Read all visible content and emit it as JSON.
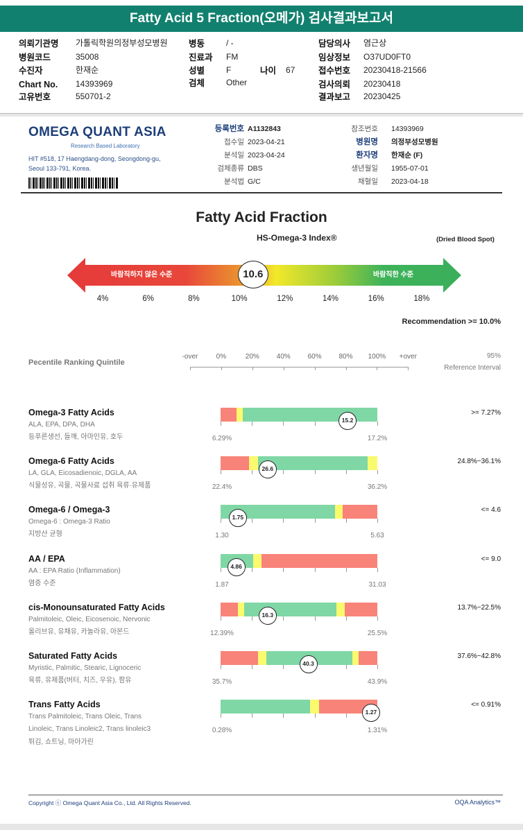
{
  "header": {
    "title": "Fatty Acid 5 Fraction(오메가) 검사결과보고서"
  },
  "info": {
    "col1": [
      {
        "k": "의뢰기관명",
        "v": "가톨릭학원의정부성모병원"
      },
      {
        "k": "병원코드",
        "v": "35008"
      },
      {
        "k": "수진자",
        "v": "한재순"
      },
      {
        "k": "Chart No.",
        "v": "14393969"
      },
      {
        "k": "고유번호",
        "v": "550701-2"
      }
    ],
    "col2": [
      {
        "k": "병동",
        "v": "/ -"
      },
      {
        "k": "진료과",
        "v": "FM"
      },
      {
        "k": "성별",
        "v": "F"
      },
      {
        "k": "검체",
        "v": "Other"
      }
    ],
    "age": {
      "k": "나이",
      "v": "67"
    },
    "col3": [
      {
        "k": "담당의사",
        "v": "염근상"
      },
      {
        "k": "임상정보",
        "v": "O37UD0FT0"
      },
      {
        "k": "접수번호",
        "v": "20230418-21566"
      },
      {
        "k": "검사의뢰",
        "v": "20230418"
      },
      {
        "k": "결과보고",
        "v": "20230425"
      }
    ]
  },
  "lab": {
    "logo": "OMEGA QUANT ASIA",
    "tagline": "Research Based Laboratory",
    "addr1": "HIT #518, 17 Haengdang-dong, Seongdong-gu,",
    "addr2": "Seoul 133-791, Korea.",
    "meta1": [
      {
        "k": "등록번호",
        "v": "A1132843",
        "b": true
      },
      {
        "k": "접수일",
        "v": "2023-04-21"
      },
      {
        "k": "분석일",
        "v": "2023-04-24"
      },
      {
        "k": "검체종류",
        "v": "DBS"
      },
      {
        "k": "분석법",
        "v": "G/C"
      }
    ],
    "meta2": [
      {
        "k": "참조번호",
        "v": "14393969"
      },
      {
        "k": "병원명",
        "v": "의정부성모병원",
        "b": true
      },
      {
        "k": "환자명",
        "v": "한재순 (F)",
        "b": true
      },
      {
        "k": "생년월일",
        "v": "1955-07-01"
      },
      {
        "k": "채혈일",
        "v": "2023-04-18"
      }
    ]
  },
  "index": {
    "title": "Fatty Acid Fraction",
    "subtitle": "HS-Omega-3 Index®",
    "specimen": "(Dried Blood Spot)",
    "value": 10.6,
    "value_label": "10.6",
    "bad_label": "바람직하지 않은 수준",
    "good_label": "바람직한 수준",
    "ticks": [
      "4%",
      "6%",
      "8%",
      "10%",
      "12%",
      "14%",
      "16%",
      "18%"
    ],
    "recommendation": "Recommendation  >= 10.0%",
    "colors": [
      "#e53a3a",
      "#eb8a2e",
      "#f2e52a",
      "#3fb35a"
    ]
  },
  "ranking": {
    "label": "Pecentile Ranking Quintile",
    "axis": [
      "-over",
      "0%",
      "20%",
      "40%",
      "60%",
      "80%",
      "100%",
      "+over"
    ],
    "ref1": "95%",
    "ref2": "Reference Interval"
  },
  "colors": {
    "red": "#f88379",
    "yellow": "#fafa6e",
    "green": "#7fd7a5"
  },
  "rows": [
    {
      "title": "Omega-3 Fatty Acids",
      "sub": "ALA, EPA, DPA, DHA",
      "sub2": "등푸른생선, 들깨, 아마인유, 호두",
      "min": "6.29%",
      "max": "17.2%",
      "value": "15.2",
      "pos": 81,
      "ref": ">= 7.27%",
      "segs": [
        [
          "red",
          10
        ],
        [
          "yellow",
          4
        ],
        [
          "green",
          86
        ]
      ]
    },
    {
      "title": "Omega-6 Fatty Acids",
      "sub": "LA, GLA, Eicosadienoic, DGLA, AA",
      "sub2": "식물성유, 곡물, 곡물사료 섭취 육류·유제품",
      "min": "22.4%",
      "max": "36.2%",
      "value": "26.6",
      "pos": 30,
      "ref": "24.8%~36.1%",
      "segs": [
        [
          "red",
          18
        ],
        [
          "yellow",
          6
        ],
        [
          "green",
          70
        ],
        [
          "yellow",
          6
        ]
      ]
    },
    {
      "title": "Omega-6 / Omega-3",
      "sub": "Omega-6 : Omega-3 Ratio",
      "sub2": "지방산 균형",
      "min": "1.30",
      "max": "5.63",
      "value": "1.75",
      "pos": 11,
      "ref": "<= 4.6",
      "segs": [
        [
          "green",
          73
        ],
        [
          "yellow",
          5
        ],
        [
          "red",
          22
        ]
      ]
    },
    {
      "title": "AA / EPA",
      "sub": "AA : EPA Ratio (Inflammation)",
      "sub2": "염증 수준",
      "min": "1.87",
      "max": "31.03",
      "value": "4.86",
      "pos": 10,
      "ref": "<= 9.0",
      "segs": [
        [
          "green",
          21
        ],
        [
          "yellow",
          5
        ],
        [
          "red",
          74
        ]
      ]
    },
    {
      "title": "cis-Monounsaturated Fatty Acids",
      "sub": "Palmitoleic, Oleic, Eicosenoic, Nervonic",
      "sub2": "올리브유, 유채유, 카놀라유, 아몬드",
      "min": "12.39%",
      "max": "25.5%",
      "value": "16.3",
      "pos": 30,
      "ref": "13.7%~22.5%",
      "segs": [
        [
          "red",
          11
        ],
        [
          "yellow",
          4
        ],
        [
          "green",
          59
        ],
        [
          "yellow",
          5
        ],
        [
          "red",
          21
        ]
      ]
    },
    {
      "title": "Saturated Fatty Acids",
      "sub": "Myristic, Palmitic, Stearic, Lignoceric",
      "sub2": "육류, 유제품(버터, 치즈, 우유), 팜유",
      "min": "35.7%",
      "max": "43.9%",
      "value": "40.3",
      "pos": 56,
      "ref": "37.6%~42.8%",
      "segs": [
        [
          "red",
          24
        ],
        [
          "yellow",
          5
        ],
        [
          "green",
          55
        ],
        [
          "yellow",
          4
        ],
        [
          "red",
          12
        ]
      ]
    },
    {
      "title": "Trans Fatty Acids",
      "sub": "Trans Palmitoleic, Trans Oleic, Trans",
      "sub2": "Linoleic, Trans Linoleic2, Trans linoleic3",
      "sub3": "튀김, 쇼트닝, 마아가린",
      "min": "0.28%",
      "max": "1.31%",
      "value": "1.27",
      "pos": 96,
      "ref": "<= 0.91%",
      "segs": [
        [
          "green",
          57
        ],
        [
          "yellow",
          6
        ],
        [
          "red",
          37
        ]
      ]
    }
  ],
  "footer": {
    "copyright": "Copyright ⓒ Omega Quant Asia Co., Ltd.  All Rights Reserved.",
    "brand": "OQA Analytics™"
  }
}
